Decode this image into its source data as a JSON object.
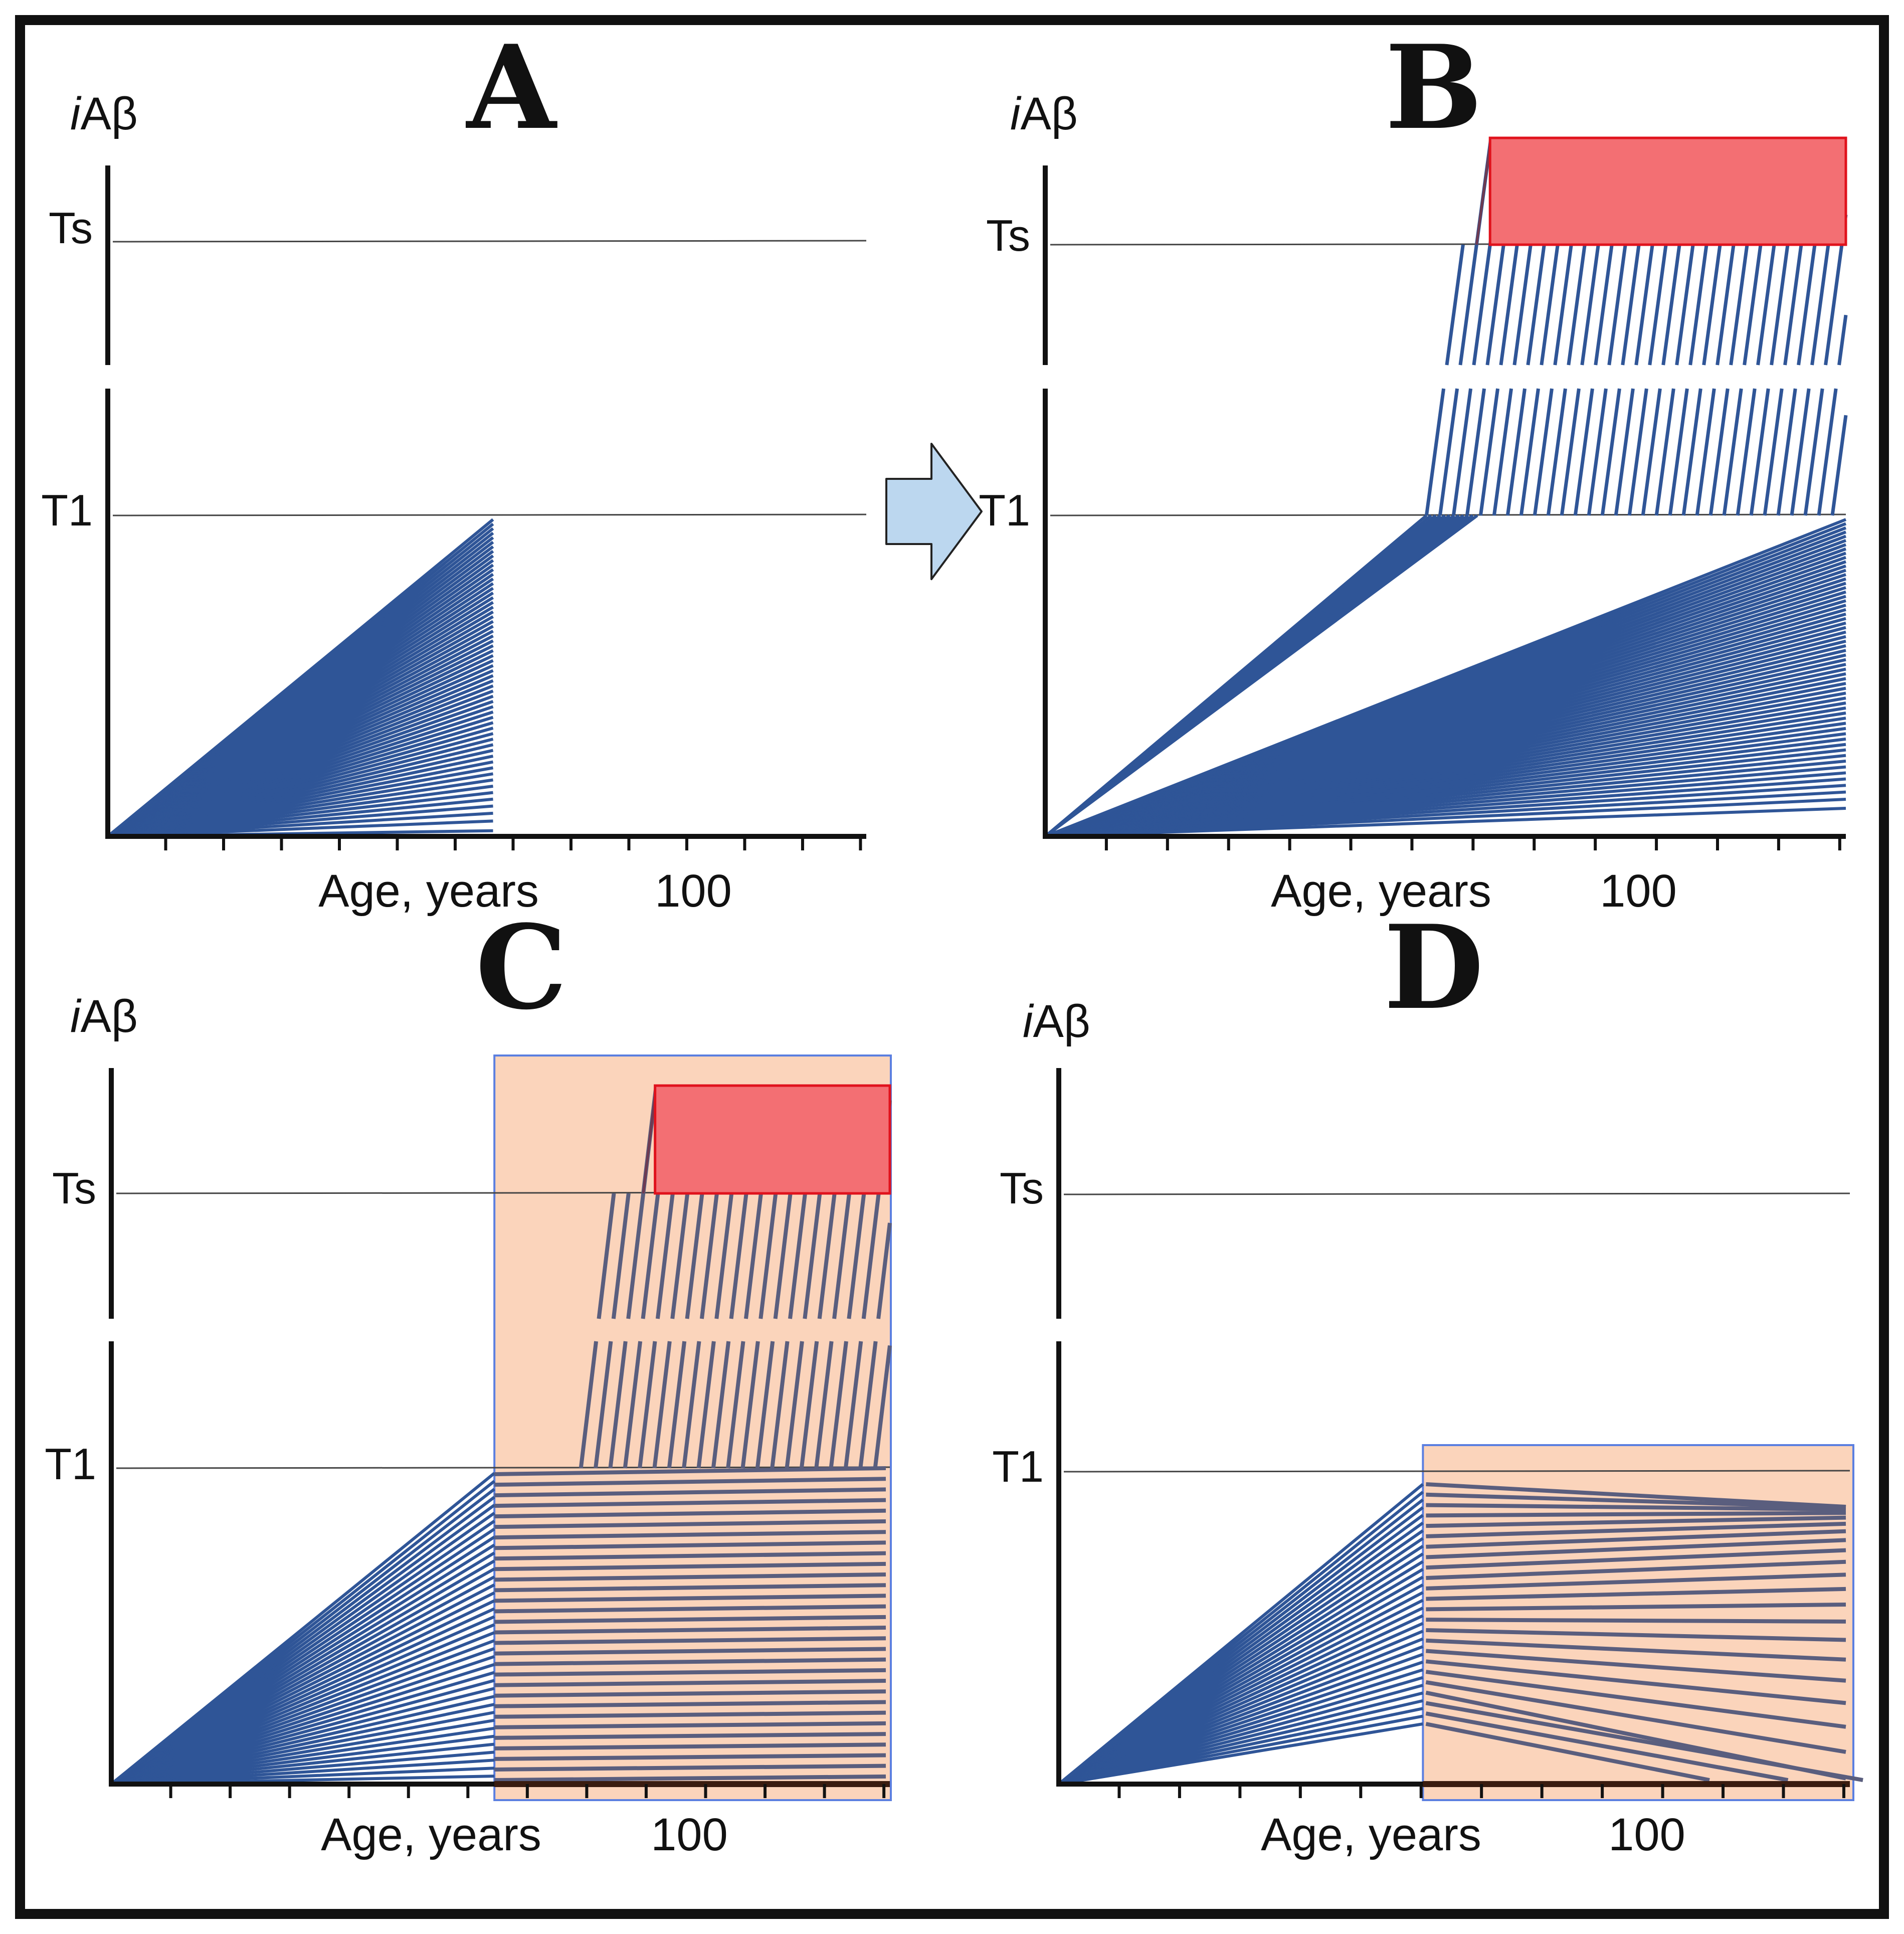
{
  "figure": {
    "panels": [
      {
        "id": "A",
        "letter": "A",
        "y_name_italic": "i",
        "y_name_rest": "Aβ",
        "ts_label": "Ts",
        "t1_label": "T1",
        "x_label": "Age, years",
        "milestone_label": "100",
        "age_range": [
          0,
          126
        ],
        "milestone_age": 100,
        "fan_end_age": 64,
        "fan_count": 60,
        "fan_lowest_level": 0.03,
        "has_lines_above_t1": false,
        "has_red_zone": false,
        "has_shade": false
      },
      {
        "id": "B",
        "letter": "B",
        "y_name_italic": "i",
        "y_name_rest": "Aβ",
        "ts_label": "Ts",
        "t1_label": "T1",
        "x_label": "Age, years",
        "milestone_label": "100",
        "age_range": [
          0,
          126
        ],
        "milestone_age": 100,
        "fan_end_age": 126,
        "fan_count": 60,
        "fan_lowest_level": 0.1,
        "has_lines_above_t1": true,
        "cross_start_age": 60,
        "cross_end_age": 126,
        "cross_count": 32,
        "has_red_zone": true,
        "red_zone_start_age": 70,
        "has_shade": false
      },
      {
        "id": "C",
        "letter": "C",
        "y_name_italic": "i",
        "y_name_rest": "Aβ",
        "ts_label": "Ts",
        "t1_label": "T1",
        "x_label": "Age, years",
        "milestone_label": "100",
        "age_range": [
          0,
          126
        ],
        "milestone_age": 100,
        "fan_end_age": 62,
        "fan_count": 40,
        "continuation_count": 30,
        "continuation_lowest_level": 0.08,
        "has_lines_above_t1": true,
        "cross_start_age": 76,
        "cross_end_age": 126,
        "cross_count": 22,
        "has_red_zone": true,
        "red_zone_start_age": 88,
        "has_shade": true,
        "shade_start_age": 62
      },
      {
        "id": "D",
        "letter": "D",
        "y_name_italic": "i",
        "y_name_rest": "Aβ",
        "ts_label": "Ts",
        "t1_label": "T1",
        "x_label": "Age, years",
        "milestone_label": "100",
        "age_range": [
          0,
          126
        ],
        "milestone_age": 100,
        "fan_end_age": 58,
        "fan_count": 32,
        "declining_count": 24,
        "declining_end_age": 126,
        "has_lines_above_t1": false,
        "has_red_zone": false,
        "has_shade": true,
        "shade_start_age": 58
      }
    ],
    "colors": {
      "trajectory": "#2f5597",
      "trajectory_shaded": "#5a5e7e",
      "shade_fill": "#fbd4bb",
      "shade_border": "#5b7fe0",
      "red_zone_fill": "#f36f73",
      "red_zone_border": "#e0121c",
      "red_zone_hatch": "#6e3b52",
      "axis": "#111111",
      "axis_shaded": "#3a1c10",
      "threshold_line": "#444444",
      "arrow_fill": "#bcd7ef",
      "arrow_border": "#222222"
    }
  }
}
